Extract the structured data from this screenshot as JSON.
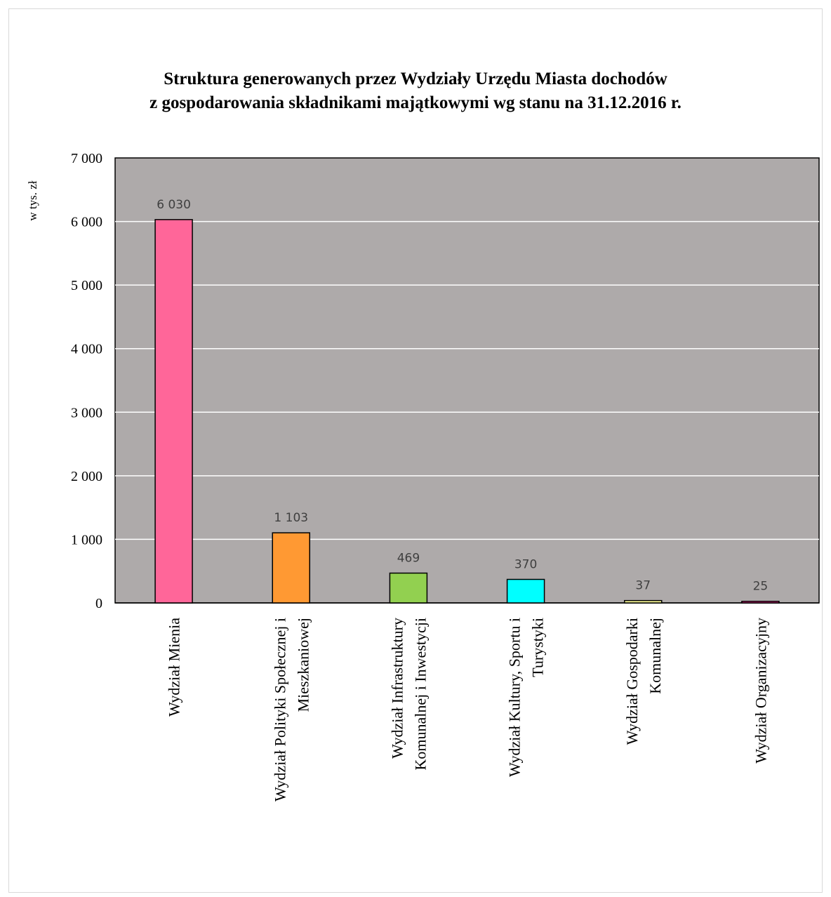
{
  "chart_data": {
    "type": "bar",
    "title_lines": [
      "Struktura generowanych przez Wydziały Urzędu Miasta dochodów",
      "z gospodarowania składnikami majątkowymi wg stanu na 31.12.2016 r."
    ],
    "ylabel": "w tys. zł",
    "ylim": [
      0,
      7000
    ],
    "yticks": [
      0,
      1000,
      2000,
      3000,
      4000,
      5000,
      6000,
      7000
    ],
    "ytick_labels": [
      "0",
      "1 000",
      "2 000",
      "3 000",
      "4 000",
      "5 000",
      "6 000",
      "7 000"
    ],
    "grid": true,
    "plot_background": "#aeaaaa",
    "categories": [
      [
        "Wydział Mienia"
      ],
      [
        "Wydział Polityki Społecznej i",
        "Mieszkaniowej"
      ],
      [
        "Wydział Infrastruktury",
        "Komunalnej i Inwestycji"
      ],
      [
        "Wydział Kultury, Sportu i",
        "Turystyki"
      ],
      [
        "Wydział Gospodarki",
        "Komunalnej"
      ],
      [
        "Wydział Organizacyjny"
      ]
    ],
    "values": [
      6030,
      1103,
      469,
      370,
      37,
      25
    ],
    "value_labels": [
      "6 030",
      "1 103",
      "469",
      "370",
      "37",
      "25"
    ],
    "colors": [
      "#ff6699",
      "#ff9933",
      "#92d050",
      "#00ffff",
      "#ffff99",
      "#ff3399"
    ]
  }
}
